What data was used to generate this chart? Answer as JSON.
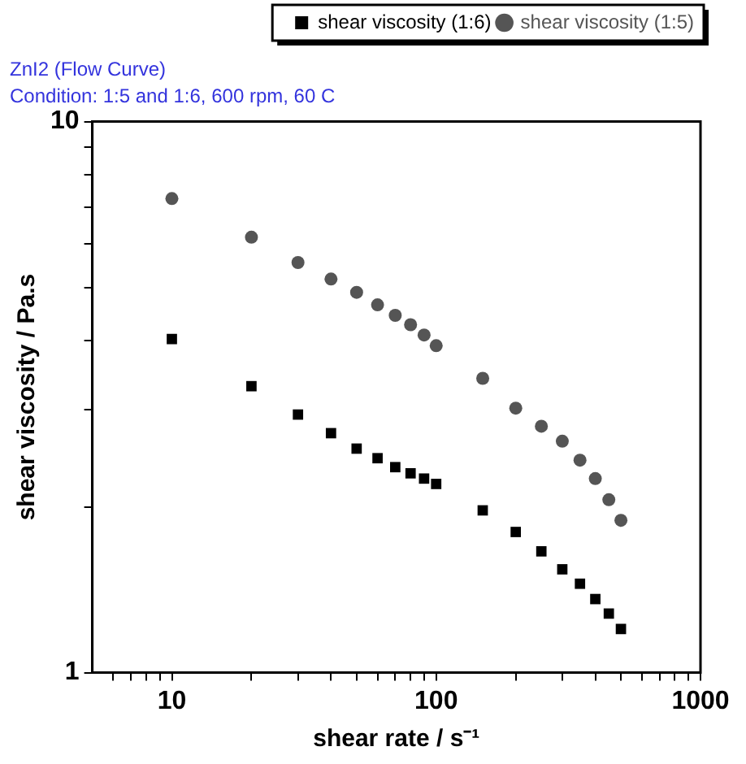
{
  "chart_data": {
    "type": "scatter",
    "title": "ZnI2 (Flow Curve)",
    "subtitle": "Condition: 1:5 and 1:6, 600 rpm, 60 C",
    "xlabel": "shear rate / s⁻¹",
    "ylabel": "shear viscosity / Pa.s",
    "log": "xy",
    "grid": false,
    "legend": "top right",
    "xlim": [
      5,
      1000
    ],
    "xticks": [
      {
        "value": 6,
        "label": null
      },
      {
        "value": 7,
        "label": null
      },
      {
        "value": 8,
        "label": null
      },
      {
        "value": 9,
        "label": null
      },
      10,
      {
        "value": 20,
        "label": null
      },
      {
        "value": 30,
        "label": null
      },
      {
        "value": 40,
        "label": null
      },
      {
        "value": 50,
        "label": null
      },
      {
        "value": 60,
        "label": null
      },
      {
        "value": 70,
        "label": null
      },
      {
        "value": 80,
        "label": null
      },
      {
        "value": 90,
        "label": null
      },
      100,
      {
        "value": 200,
        "label": null
      },
      {
        "value": 300,
        "label": null
      },
      {
        "value": 400,
        "label": null
      },
      {
        "value": 500,
        "label": null
      },
      {
        "value": 600,
        "label": null
      },
      {
        "value": 700,
        "label": null
      },
      {
        "value": 800,
        "label": null
      },
      {
        "value": 900,
        "label": null
      },
      1000
    ],
    "ylim": [
      1,
      10
    ],
    "yticks": [
      1,
      {
        "value": 2,
        "label": null
      },
      {
        "value": 3,
        "label": null
      },
      {
        "value": 4,
        "label": null
      },
      {
        "value": 5,
        "label": null
      },
      {
        "value": 6,
        "label": null
      },
      {
        "value": 7,
        "label": null
      },
      {
        "value": 8,
        "label": null
      },
      {
        "value": 9,
        "label": null
      },
      10
    ],
    "x": [
      10,
      20,
      30,
      40,
      50,
      60,
      70,
      80,
      90,
      100,
      150,
      200,
      250,
      300,
      350,
      400,
      450,
      500
    ],
    "series": [
      {
        "name": "shear viscosity (1:6)",
        "color": "#000000",
        "marker": "square",
        "values": [
          4.03,
          3.31,
          2.94,
          2.72,
          2.55,
          2.45,
          2.36,
          2.3,
          2.25,
          2.2,
          1.97,
          1.8,
          1.66,
          1.54,
          1.45,
          1.36,
          1.28,
          1.2
        ]
      },
      {
        "name": "shear viscosity (1:5)",
        "color": "#555555",
        "marker": "circle",
        "values": [
          7.25,
          6.17,
          5.55,
          5.18,
          4.9,
          4.65,
          4.45,
          4.28,
          4.1,
          3.92,
          3.42,
          3.02,
          2.8,
          2.63,
          2.43,
          2.25,
          2.06,
          1.89
        ]
      }
    ]
  }
}
